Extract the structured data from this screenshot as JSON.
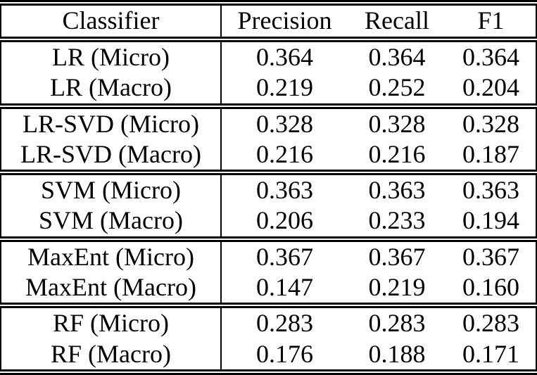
{
  "table": {
    "header": {
      "classifier": "Classifier",
      "precision": "Precision",
      "recall": "Recall",
      "f1": "F1"
    },
    "rows": [
      {
        "classifier": "LR (Micro)",
        "precision": "0.364",
        "recall": "0.364",
        "f1": "0.364"
      },
      {
        "classifier": "LR (Macro)",
        "precision": "0.219",
        "recall": "0.252",
        "f1": "0.204"
      },
      {
        "classifier": "LR-SVD (Micro)",
        "precision": "0.328",
        "recall": "0.328",
        "f1": "0.328"
      },
      {
        "classifier": "LR-SVD (Macro)",
        "precision": "0.216",
        "recall": "0.216",
        "f1": "0.187"
      },
      {
        "classifier": "SVM (Micro)",
        "precision": "0.363",
        "recall": "0.363",
        "f1": "0.363"
      },
      {
        "classifier": "SVM (Macro)",
        "precision": "0.206",
        "recall": "0.233",
        "f1": "0.194"
      },
      {
        "classifier": "MaxEnt (Micro)",
        "precision": "0.367",
        "recall": "0.367",
        "f1": "0.367"
      },
      {
        "classifier": "MaxEnt (Macro)",
        "precision": "0.147",
        "recall": "0.219",
        "f1": "0.160"
      },
      {
        "classifier": "RF (Micro)",
        "precision": "0.283",
        "recall": "0.283",
        "f1": "0.283"
      },
      {
        "classifier": "RF (Macro)",
        "precision": "0.176",
        "recall": "0.188",
        "f1": "0.171"
      }
    ]
  },
  "colors": {
    "background": "#ffffff",
    "text": "#000000",
    "rule": "#000000"
  }
}
